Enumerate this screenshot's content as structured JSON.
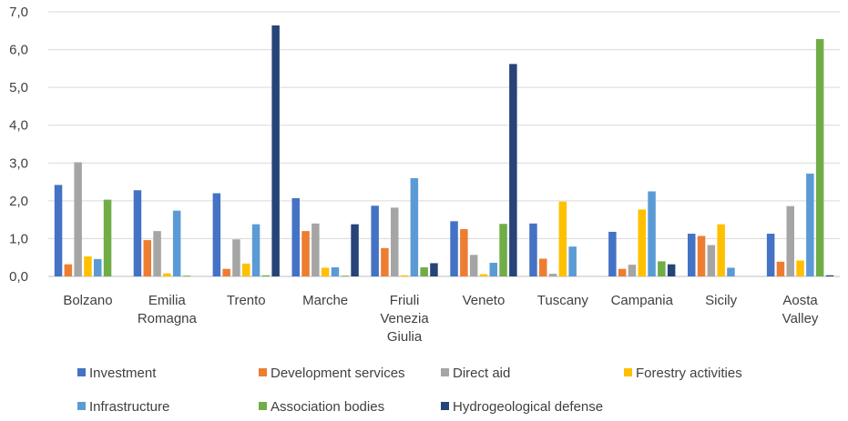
{
  "chart_data": {
    "type": "bar",
    "title": "",
    "xlabel": "",
    "ylabel": "",
    "ylim": [
      0,
      7
    ],
    "yticks": [
      "0,0",
      "1,0",
      "2,0",
      "3,0",
      "4,0",
      "5,0",
      "6,0",
      "7,0"
    ],
    "grid": true,
    "legend_position": "bottom",
    "categories": [
      [
        "Bolzano"
      ],
      [
        "Emilia",
        "Romagna"
      ],
      [
        "Trento"
      ],
      [
        "Marche"
      ],
      [
        "Friuli",
        "Venezia",
        "Giulia"
      ],
      [
        "Veneto"
      ],
      [
        "Tuscany"
      ],
      [
        "Campania"
      ],
      [
        "Sicily"
      ],
      [
        "Aosta",
        "Valley"
      ]
    ],
    "series": [
      {
        "name": "Investment",
        "color": "#4472C4",
        "values": [
          2.42,
          2.28,
          2.2,
          2.07,
          1.87,
          1.46,
          1.4,
          1.18,
          1.13,
          1.13
        ]
      },
      {
        "name": "Development services",
        "color": "#ED7D31",
        "values": [
          0.32,
          0.96,
          0.2,
          1.2,
          0.75,
          1.25,
          0.47,
          0.2,
          1.07,
          0.39
        ]
      },
      {
        "name": "Direct aid",
        "color": "#A5A5A5",
        "values": [
          3.02,
          1.2,
          0.98,
          1.4,
          1.82,
          0.57,
          0.07,
          0.31,
          0.83,
          1.86
        ]
      },
      {
        "name": "Forestry activities",
        "color": "#FFC000",
        "values": [
          0.53,
          0.08,
          0.34,
          0.23,
          0.03,
          0.06,
          1.98,
          1.77,
          1.38,
          0.42
        ]
      },
      {
        "name": "Infrastructure",
        "color": "#5B9BD5",
        "values": [
          0.46,
          1.74,
          1.38,
          0.24,
          2.6,
          0.36,
          0.79,
          2.25,
          0.23,
          2.72
        ]
      },
      {
        "name": "Association bodies",
        "color": "#70AD47",
        "values": [
          2.03,
          0.02,
          0.03,
          0.02,
          0.24,
          1.39,
          0.0,
          0.4,
          0.0,
          6.28
        ]
      },
      {
        "name": "Hydrogeological defense",
        "color": "#264478",
        "values": [
          0.0,
          0.0,
          6.64,
          1.38,
          0.35,
          5.62,
          0.0,
          0.32,
          0.0,
          0.03
        ]
      }
    ]
  }
}
